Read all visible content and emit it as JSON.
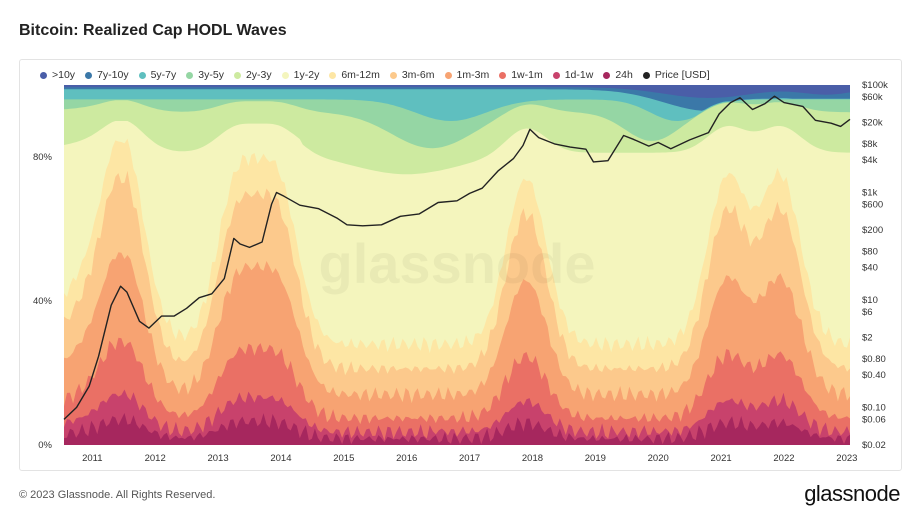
{
  "title": "Bitcoin: Realized Cap HODL Waves",
  "watermark": "glassnode",
  "footer": {
    "copyright": "© 2023 Glassnode. All Rights Reserved.",
    "brand": "glassnode"
  },
  "chart_data": {
    "type": "area",
    "title": "Bitcoin: Realized Cap HODL Waves",
    "stacked": true,
    "y_left": {
      "ticks": [
        "0%",
        "40%",
        "80%"
      ],
      "range": [
        0,
        100
      ],
      "unit": "%"
    },
    "y_right": {
      "scale": "log",
      "range": [
        0.02,
        100000
      ],
      "ticks": [
        "$100k",
        "$60k",
        "$20k",
        "$8k",
        "$4k",
        "$1k",
        "$600",
        "$200",
        "$80",
        "$40",
        "$10",
        "$6",
        "$2",
        "$0.80",
        "$0.40",
        "$0.10",
        "$0.06",
        "$0.02"
      ]
    },
    "x_ticks": [
      "2011",
      "2012",
      "2013",
      "2014",
      "2015",
      "2016",
      "2017",
      "2018",
      "2019",
      "2020",
      "2021",
      "2022",
      "2023"
    ],
    "x_range": [
      2010.55,
      2023.05
    ],
    "legend": [
      {
        "label": ">10y",
        "color": "#4a5ea8"
      },
      {
        "label": "7y-10y",
        "color": "#3b78a8"
      },
      {
        "label": "5y-7y",
        "color": "#5fbfbf"
      },
      {
        "label": "3y-5y",
        "color": "#95d6a4"
      },
      {
        "label": "2y-3y",
        "color": "#cdeaa0"
      },
      {
        "label": "1y-2y",
        "color": "#f4f5bd"
      },
      {
        "label": "6m-12m",
        "color": "#fde6a4"
      },
      {
        "label": "3m-6m",
        "color": "#fcc98c"
      },
      {
        "label": "1m-3m",
        "color": "#f7a372"
      },
      {
        "label": "1w-1m",
        "color": "#ea7065"
      },
      {
        "label": "1d-1w",
        "color": "#c8426c"
      },
      {
        "label": "24h",
        "color": "#a6275e"
      },
      {
        "label": "Price [USD]",
        "color": "#222222"
      }
    ],
    "price_series": {
      "name": "Price [USD]",
      "x": [
        2010.55,
        2010.75,
        2010.95,
        2011.1,
        2011.3,
        2011.45,
        2011.55,
        2011.75,
        2011.9,
        2012.1,
        2012.3,
        2012.5,
        2012.7,
        2012.9,
        2013.1,
        2013.25,
        2013.35,
        2013.5,
        2013.7,
        2013.85,
        2013.93,
        2014.05,
        2014.3,
        2014.6,
        2014.9,
        2015.05,
        2015.3,
        2015.6,
        2015.9,
        2016.2,
        2016.5,
        2016.8,
        2017.0,
        2017.2,
        2017.45,
        2017.7,
        2017.85,
        2017.96,
        2018.1,
        2018.35,
        2018.6,
        2018.85,
        2018.97,
        2019.2,
        2019.45,
        2019.6,
        2019.85,
        2020.0,
        2020.2,
        2020.5,
        2020.8,
        2020.97,
        2021.15,
        2021.3,
        2021.5,
        2021.7,
        2021.85,
        2022.0,
        2022.3,
        2022.5,
        2022.75,
        2022.9,
        2023.05
      ],
      "y": [
        0.06,
        0.1,
        0.25,
        0.9,
        8,
        18,
        14,
        4,
        3,
        5,
        5,
        7,
        11,
        13,
        25,
        140,
        110,
        95,
        120,
        600,
        1000,
        850,
        580,
        500,
        330,
        250,
        240,
        250,
        360,
        400,
        650,
        700,
        960,
        1200,
        2500,
        4300,
        7500,
        15000,
        10500,
        8000,
        7000,
        6400,
        3700,
        3900,
        11500,
        9800,
        7300,
        8500,
        6500,
        9500,
        13000,
        29000,
        47000,
        58000,
        35000,
        45000,
        62000,
        47000,
        40000,
        22000,
        19500,
        17000,
        23000
      ]
    },
    "bands_note": "stacked age bands from 24h (bottom) to >10y (top)"
  }
}
